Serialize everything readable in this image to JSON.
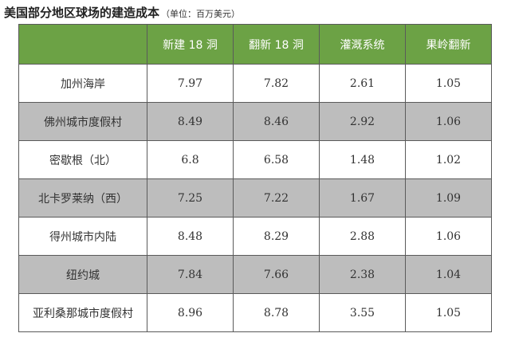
{
  "title": {
    "main": "美国部分地区球场的建造成本",
    "unit": "（单位：百万美元）"
  },
  "table": {
    "headers": [
      "",
      "新建 18 洞",
      "翻新 18 洞",
      "灌溉系统",
      "果岭翻新"
    ],
    "rows": [
      [
        "加州海岸",
        "7.97",
        "7.82",
        "2.61",
        "1.05"
      ],
      [
        "佛州城市度假村",
        "8.49",
        "8.46",
        "2.92",
        "1.06"
      ],
      [
        "密歇根（北）",
        "6.8",
        "6.58",
        "1.48",
        "1.02"
      ],
      [
        "北卡罗莱纳（西）",
        "7.25",
        "7.22",
        "1.67",
        "1.09"
      ],
      [
        "得州城市内陆",
        "8.48",
        "8.29",
        "2.88",
        "1.06"
      ],
      [
        "纽约城",
        "7.84",
        "7.66",
        "2.38",
        "1.04"
      ],
      [
        "亚利桑那城市度假村",
        "8.96",
        "8.78",
        "3.55",
        "1.05"
      ]
    ]
  },
  "colors": {
    "header_background": "#6ca245",
    "header_text": "#ffffff",
    "row_alt_background": "#bdbdbd",
    "row_background": "#ffffff"
  }
}
